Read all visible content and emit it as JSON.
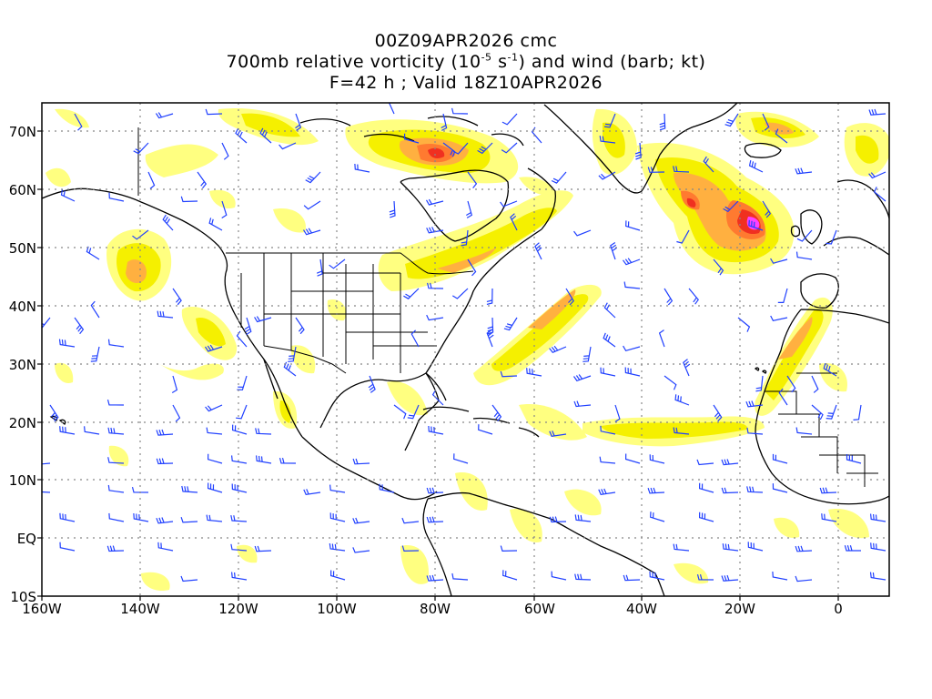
{
  "header": {
    "line1": "00Z09APR2026 cmc",
    "line2_pre": "700mb relative vorticity (10",
    "line2_exp1": "-5",
    "line2_mid": " s",
    "line2_exp2": "-1",
    "line2_post": ") and wind (barb; kt)",
    "line3": "F=42 h ; Valid 18Z10APR2026"
  },
  "axes": {
    "lon_labels": [
      "160W",
      "140W",
      "120W",
      "100W",
      "80W",
      "60W",
      "40W",
      "20W",
      "0"
    ],
    "lat_labels": [
      "70N",
      "60N",
      "50N",
      "40N",
      "30N",
      "20N",
      "10N",
      "EQ",
      "10S"
    ]
  },
  "style": {
    "vort_light": "#ffff80",
    "vort_yellow": "#f5f000",
    "vort_orange": "#ffb040",
    "vort_darkorange": "#ff7a30",
    "vort_red": "#f03020",
    "vort_magenta": "#ff40ff",
    "barb_color": "#2040ff",
    "grid_color": "#888888",
    "coast_color": "#000000"
  },
  "features": [
    {
      "name": "hudson-bay-vortex",
      "color_level": "red"
    },
    {
      "name": "north-atlantic-low",
      "color_level": "magenta"
    },
    {
      "name": "central-atlantic-band",
      "color_level": "orange"
    },
    {
      "name": "northeast-pacific-band",
      "color_level": "orange"
    }
  ]
}
